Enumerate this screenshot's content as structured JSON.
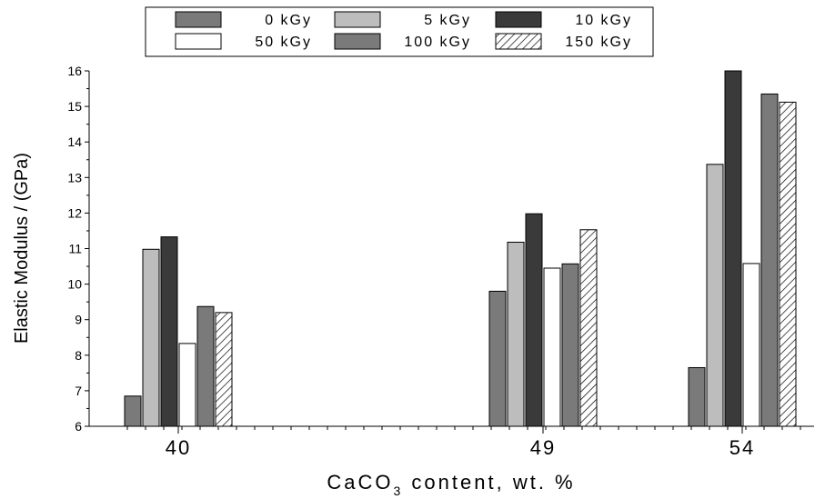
{
  "chart_data": {
    "type": "bar",
    "categories": [
      "40",
      "49",
      "54"
    ],
    "series": [
      {
        "name": "0 kGy",
        "values": [
          6.85,
          9.8,
          7.65
        ],
        "color": "#7a7a7a",
        "pattern": "solid"
      },
      {
        "name": "5 kGy",
        "values": [
          10.98,
          11.18,
          13.37
        ],
        "color": "#bdbdbd",
        "pattern": "solid"
      },
      {
        "name": "10 kGy",
        "values": [
          11.33,
          11.98,
          16.0
        ],
        "color": "#3a3a3a",
        "pattern": "solid"
      },
      {
        "name": "50 kGy",
        "values": [
          8.33,
          10.45,
          10.58
        ],
        "color": "#ffffff",
        "pattern": "solid"
      },
      {
        "name": "100 kGy",
        "values": [
          9.37,
          10.57,
          15.35
        ],
        "color": "#7a7a7a",
        "pattern": "solid"
      },
      {
        "name": "150 kGy",
        "values": [
          9.2,
          11.53,
          15.12
        ],
        "color": "#ffffff",
        "pattern": "hatch"
      }
    ],
    "title": "",
    "xlabel_main": "CaCO",
    "xlabel_sub": "3",
    "xlabel_rest": " content, wt. %",
    "ylabel": "Elastic Modulus / (GPa)",
    "ylim": [
      6,
      16
    ],
    "yticks": [
      "6",
      "7",
      "8",
      "9",
      "10",
      "11",
      "12",
      "13",
      "14",
      "15",
      "16"
    ],
    "legend_position": "top-center",
    "grid": false
  }
}
